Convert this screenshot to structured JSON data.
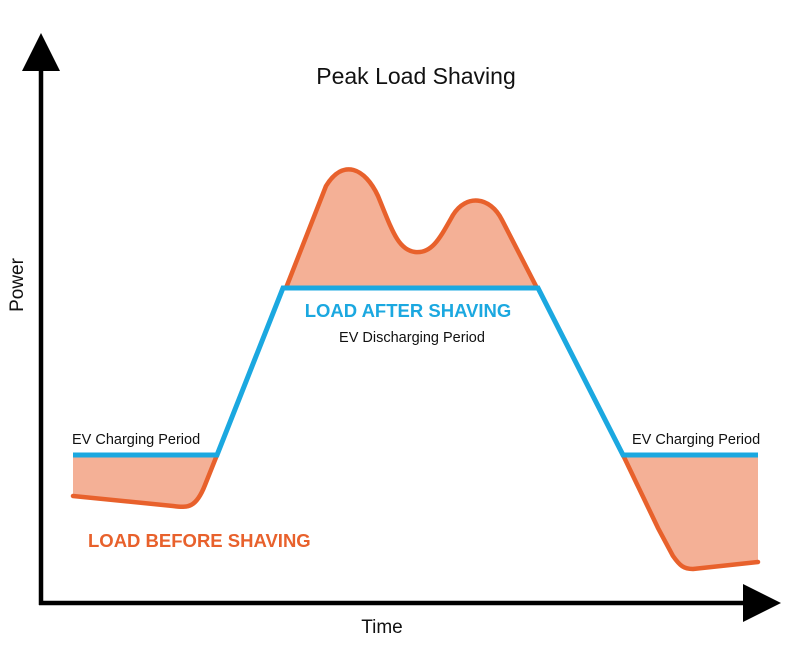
{
  "title": "Peak Load Shaving",
  "x_axis_label": "Time",
  "y_axis_label": "Power",
  "labels": {
    "ev_charging_left": "EV Charging Period",
    "ev_charging_right": "EV Charging Period",
    "load_after_shaving": "LOAD AFTER SHAVING",
    "ev_discharging": "EV Discharging Period",
    "load_before_shaving": "LOAD BEFORE SHAVING"
  },
  "colors": {
    "load_before": "#e8612c",
    "load_before_fill": "#f4b096",
    "load_after": "#1ba8e0",
    "axis": "#000000",
    "text": "#111111"
  }
}
